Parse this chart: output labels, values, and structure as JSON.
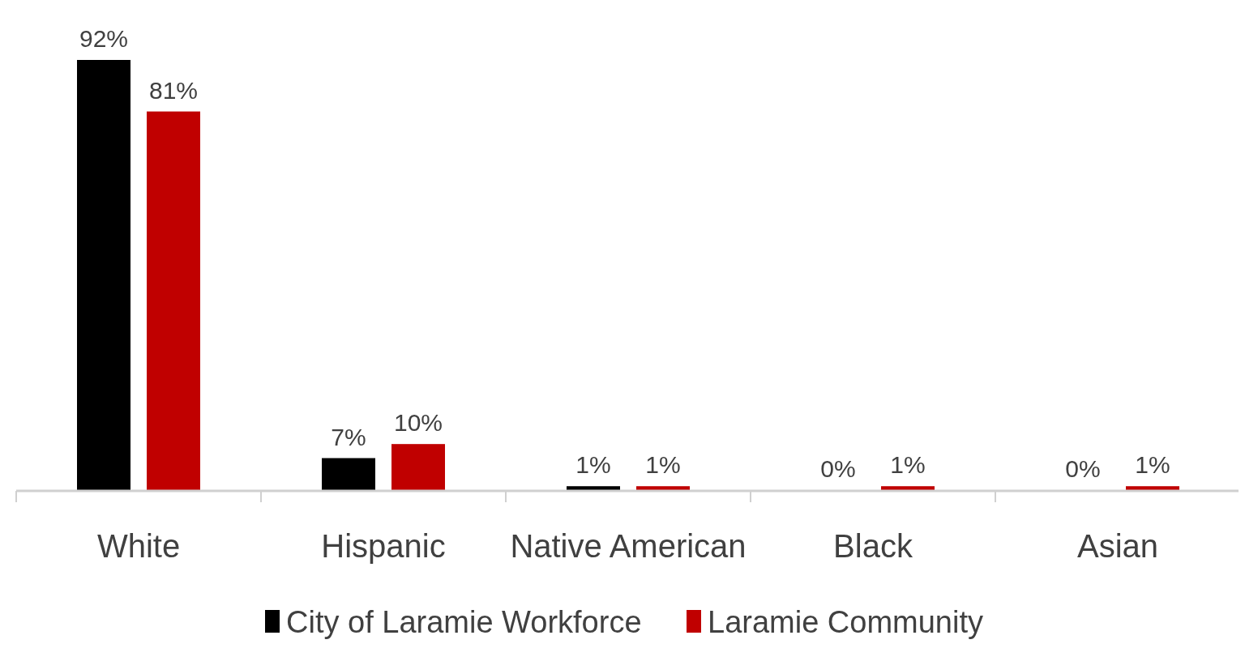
{
  "chart_data": {
    "type": "bar",
    "categories": [
      "White",
      "Hispanic",
      "Native American",
      "Black",
      "Asian"
    ],
    "series": [
      {
        "name": "City of Laramie Workforce",
        "color": "#000000",
        "values": [
          92,
          7,
          1,
          0,
          0
        ],
        "value_labels": [
          "92%",
          "7%",
          "1%",
          "0%",
          "0%"
        ]
      },
      {
        "name": "Laramie Community",
        "color": "#c00000",
        "values": [
          81,
          10,
          1,
          1,
          1
        ],
        "value_labels": [
          "81%",
          "10%",
          "1%",
          "1%",
          "1%"
        ]
      }
    ],
    "tick_labels": "x",
    "legend": "bottom"
  }
}
